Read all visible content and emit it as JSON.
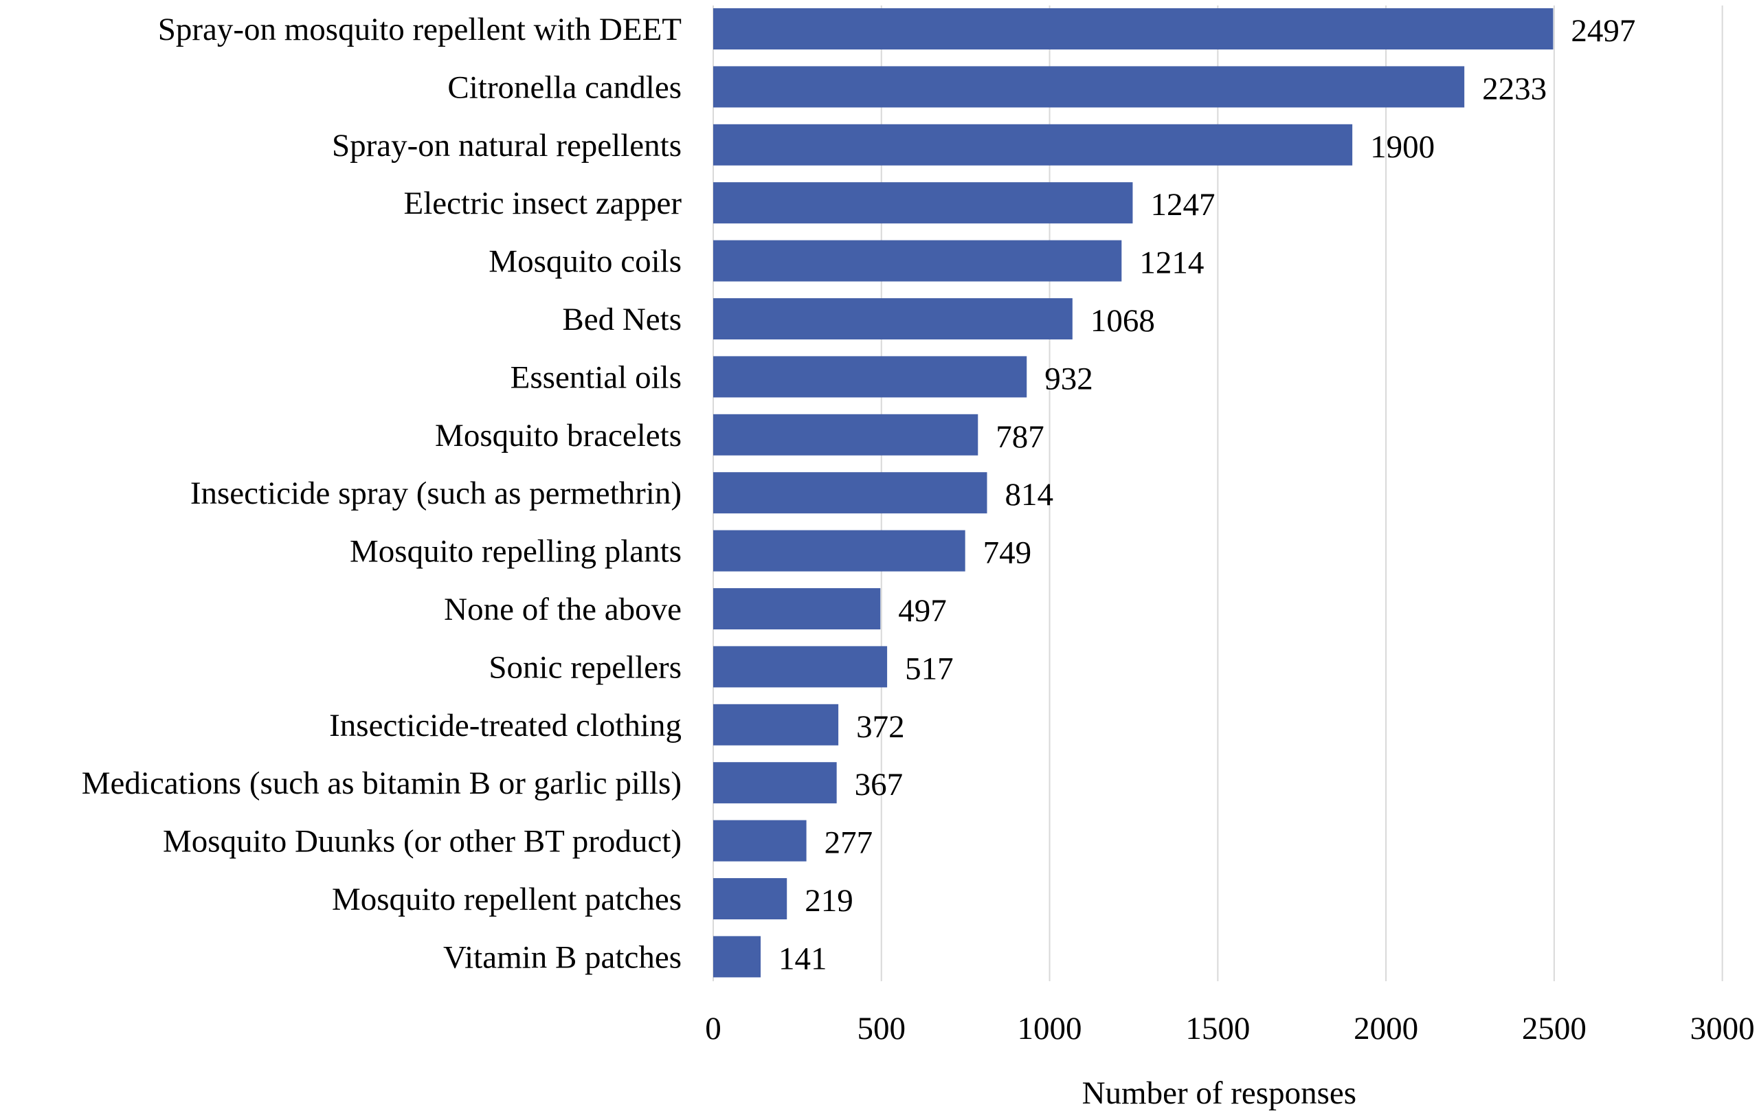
{
  "chart_data": {
    "type": "bar",
    "orientation": "horizontal",
    "title": "",
    "xlabel": "Number of responses",
    "ylabel": "",
    "xlim": [
      0,
      3000
    ],
    "xticks": [
      0,
      500,
      1000,
      1500,
      2000,
      2500,
      3000
    ],
    "grid": "vertical",
    "legend": "none",
    "bar_color": "#4460A8",
    "grid_color": "#D9D9D9",
    "categories": [
      "Spray-on mosquito repellent with DEET",
      "Citronella candles",
      "Spray-on natural repellents",
      "Electric insect zapper",
      "Mosquito coils",
      "Bed Nets",
      "Essential oils",
      "Mosquito bracelets",
      "Insecticide spray (such as permethrin)",
      "Mosquito repelling plants",
      "None of the above",
      "Sonic repellers",
      "Insecticide-treated clothing",
      "Medications (such as bitamin B or garlic pills)",
      "Mosquito Duunks (or other BT product)",
      "Mosquito repellent patches",
      "Vitamin B patches"
    ],
    "values": [
      2497,
      2233,
      1900,
      1247,
      1214,
      1068,
      932,
      787,
      814,
      749,
      497,
      517,
      372,
      367,
      277,
      219,
      141
    ]
  }
}
